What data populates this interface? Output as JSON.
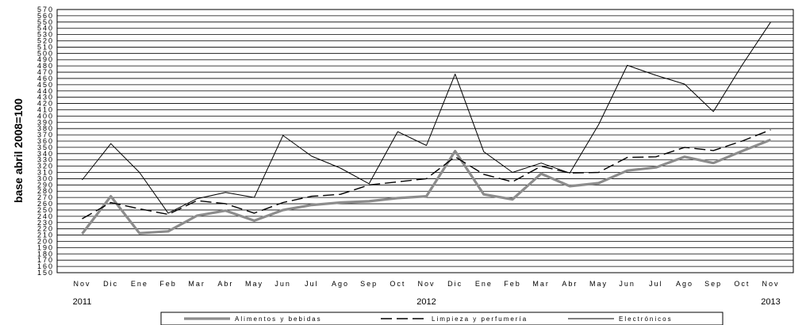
{
  "chart_data": {
    "type": "line",
    "title": "",
    "ylabel": "base abril 2008=100",
    "xlabel": "",
    "ylim": [
      150,
      570
    ],
    "ystep": 10,
    "grid": true,
    "legend_position": "bottom",
    "categories": [
      "Nov",
      "Dic",
      "Ene",
      "Feb",
      "Mar",
      "Abr",
      "May",
      "Jun",
      "Jul",
      "Ago",
      "Sep",
      "Oct",
      "Nov",
      "Dic",
      "Ene",
      "Feb",
      "Mar",
      "Abr",
      "May",
      "Jun",
      "Jul",
      "Ago",
      "Sep",
      "Oct",
      "Nov"
    ],
    "years": [
      {
        "label": "2011",
        "index": 0
      },
      {
        "label": "2012",
        "index": 12
      },
      {
        "label": "2013",
        "index": 24
      }
    ],
    "series": [
      {
        "name": "Alimentos y bebidas",
        "color": "#8c8c8c",
        "style": "solid-thick",
        "values": [
          212,
          272,
          213,
          216,
          241,
          249,
          233,
          250,
          258,
          262,
          264,
          269,
          272,
          344,
          275,
          267,
          308,
          288,
          293,
          313,
          318,
          335,
          325,
          344,
          362
        ]
      },
      {
        "name": "Limpieza y perfumería",
        "color": "#000000",
        "style": "dashed",
        "values": [
          236,
          262,
          252,
          243,
          265,
          260,
          245,
          262,
          272,
          275,
          290,
          295,
          300,
          335,
          307,
          295,
          320,
          309,
          310,
          334,
          335,
          350,
          345,
          360,
          378
        ]
      },
      {
        "name": "Electrónicos",
        "color": "#000000",
        "style": "solid-thin",
        "values": [
          298,
          356,
          310,
          245,
          268,
          278,
          270,
          369,
          336,
          317,
          292,
          375,
          353,
          467,
          343,
          310,
          325,
          309,
          386,
          481,
          465,
          451,
          407,
          481,
          550
        ]
      }
    ]
  }
}
